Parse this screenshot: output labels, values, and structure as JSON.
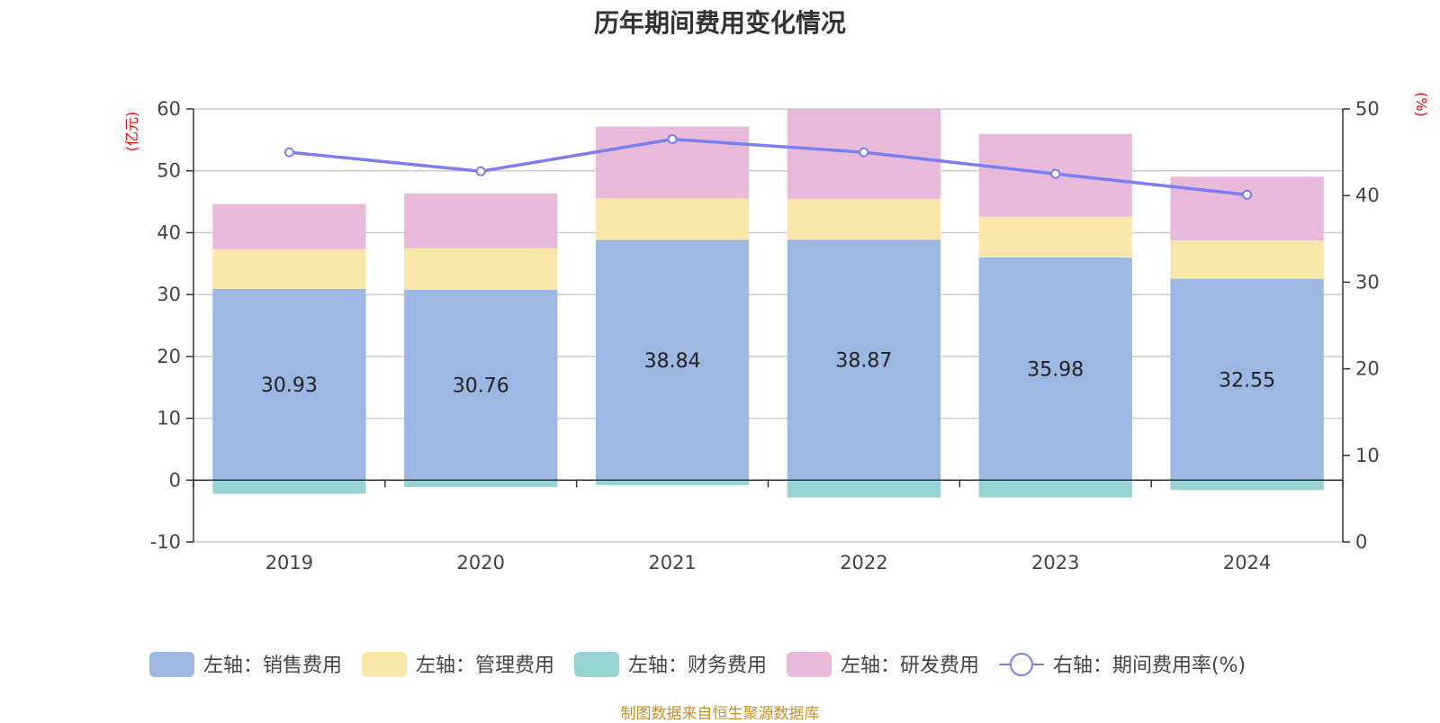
{
  "chart_data": {
    "type": "bar",
    "stacked": true,
    "title": "历年期间费用变化情况",
    "categories": [
      "2019",
      "2020",
      "2021",
      "2022",
      "2023",
      "2024"
    ],
    "left_axis": {
      "unit": "(亿元)",
      "ylim": [
        -10,
        60
      ],
      "ticks": [
        -10,
        0,
        10,
        20,
        30,
        40,
        50,
        60
      ]
    },
    "right_axis": {
      "unit": "(%)",
      "ylim": [
        0,
        50
      ],
      "ticks": [
        0,
        10,
        20,
        30,
        40,
        50
      ]
    },
    "series": [
      {
        "name": "左轴：销售费用",
        "kind": "bar",
        "axis": "left",
        "color": "#9bb7e2",
        "values": [
          30.93,
          30.76,
          38.84,
          38.87,
          35.98,
          32.55
        ],
        "show_labels": true
      },
      {
        "name": "左轴：管理费用",
        "kind": "bar",
        "axis": "left",
        "color": "#f8e7a8",
        "values": [
          6.4,
          6.7,
          6.7,
          6.6,
          6.6,
          6.2
        ]
      },
      {
        "name": "左轴：财务费用",
        "kind": "bar",
        "axis": "left",
        "color": "#96d3d3",
        "values": [
          -2.2,
          -1.1,
          -0.8,
          -2.8,
          -2.8,
          -1.6
        ]
      },
      {
        "name": "左轴：研发费用",
        "kind": "bar",
        "axis": "left",
        "color": "#e8b9d8",
        "values": [
          7.3,
          8.9,
          11.6,
          14.5,
          13.4,
          10.3
        ]
      },
      {
        "name": "右轴：期间费用率(%)",
        "kind": "line",
        "axis": "right",
        "color": "#7b7ef0",
        "values": [
          45.0,
          42.8,
          46.5,
          45.0,
          42.5,
          40.1
        ]
      }
    ],
    "grid": true,
    "legend_position": "bottom"
  },
  "source_note": "制图数据来自恒生聚源数据库"
}
